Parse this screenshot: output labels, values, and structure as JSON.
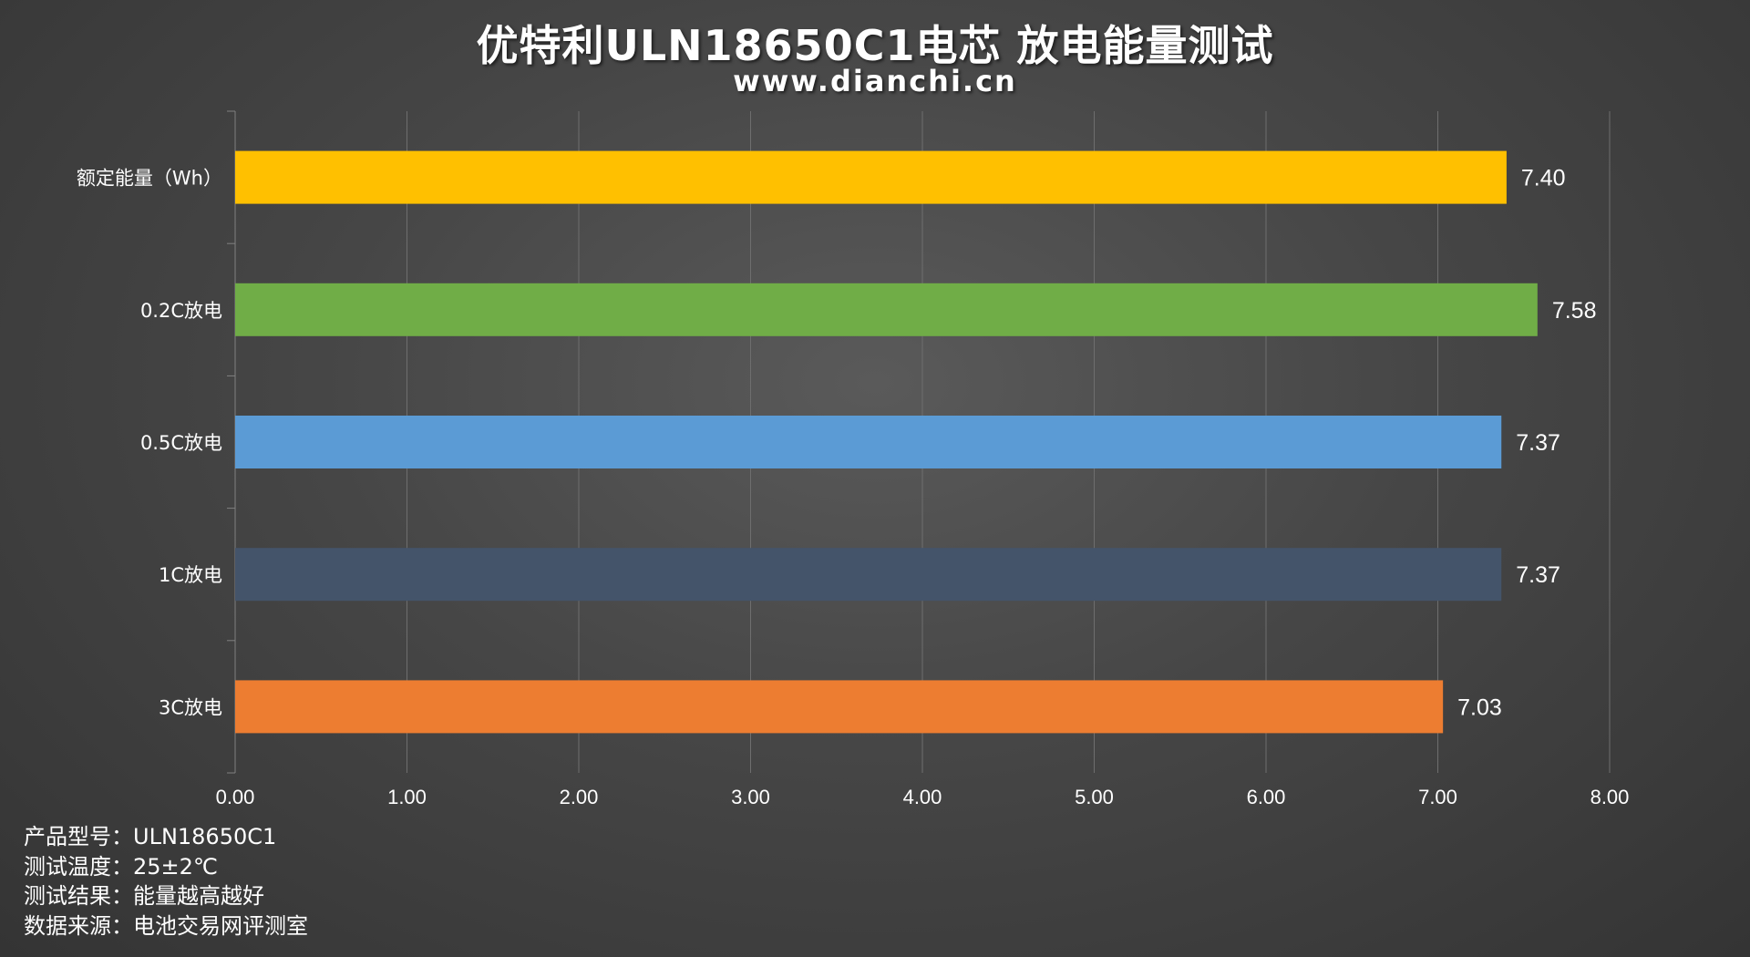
{
  "title": "优特利ULN18650C1电芯 放电能量测试",
  "subtitle": "www.dianchi.cn",
  "chart_data": {
    "type": "bar",
    "orientation": "horizontal",
    "categories": [
      "额定能量（Wh）",
      "0.2C放电",
      "0.5C放电",
      "1C放电",
      "3C放电"
    ],
    "values": [
      7.4,
      7.58,
      7.37,
      7.37,
      7.03
    ],
    "value_labels": [
      "7.40",
      "7.58",
      "7.37",
      "7.37",
      "7.03"
    ],
    "colors": [
      "#FFC000",
      "#70AD47",
      "#5B9BD5",
      "#44546A",
      "#ED7D31"
    ],
    "xlim": [
      0,
      8
    ],
    "xticks": [
      "0.00",
      "1.00",
      "2.00",
      "3.00",
      "4.00",
      "5.00",
      "6.00",
      "7.00",
      "8.00"
    ],
    "grid": true,
    "legend": "none"
  },
  "notes": [
    {
      "key": "产品型号：",
      "value": "ULN18650C1"
    },
    {
      "key": "测试温度：",
      "value": "25±2℃"
    },
    {
      "key": "测试结果：",
      "value": "能量越高越好"
    },
    {
      "key": "数据来源：",
      "value": "电池交易网评测室"
    }
  ]
}
